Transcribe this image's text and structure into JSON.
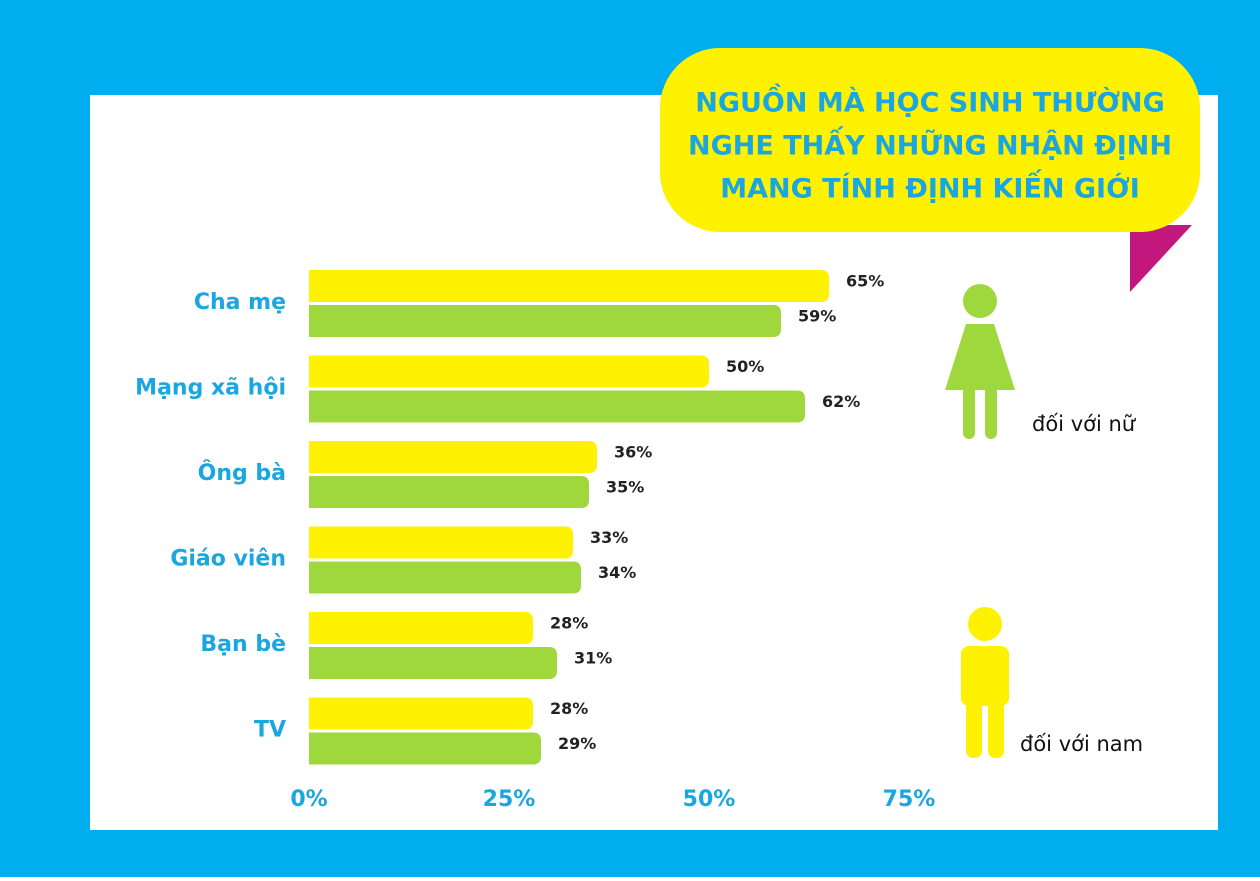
{
  "chart_data": {
    "type": "bar",
    "orientation": "horizontal",
    "title": [
      "NGUỒN MÀ HỌC SINH THƯỜNG",
      "NGHE THẤY NHỮNG NHẬN ĐỊNH",
      "MANG TÍNH ĐỊNH KIẾN GIỚI"
    ],
    "categories": [
      "Cha mẹ",
      "Mạng xã hội",
      "Ông bà",
      "Giáo viên",
      "Bạn bè",
      "TV"
    ],
    "series": [
      {
        "name": "đối với nam",
        "color": "#fff200",
        "values": [
          65,
          50,
          36,
          33,
          28,
          28
        ],
        "value_labels": [
          "65%",
          "50%",
          "36%",
          "33%",
          "28%",
          "28%"
        ]
      },
      {
        "name": "đối với nữ",
        "color": "#9ed83c",
        "values": [
          59,
          62,
          35,
          34,
          31,
          29
        ],
        "value_labels": [
          "59%",
          "62%",
          "35%",
          "34%",
          "31%",
          "29%"
        ]
      }
    ],
    "xlim": [
      0,
      75
    ],
    "xticks": [
      {
        "value": 0,
        "label": "0%"
      },
      {
        "value": 25,
        "label": "25%"
      },
      {
        "value": 50,
        "label": "50%"
      },
      {
        "value": 75,
        "label": "75%"
      }
    ],
    "grid": false
  }
}
